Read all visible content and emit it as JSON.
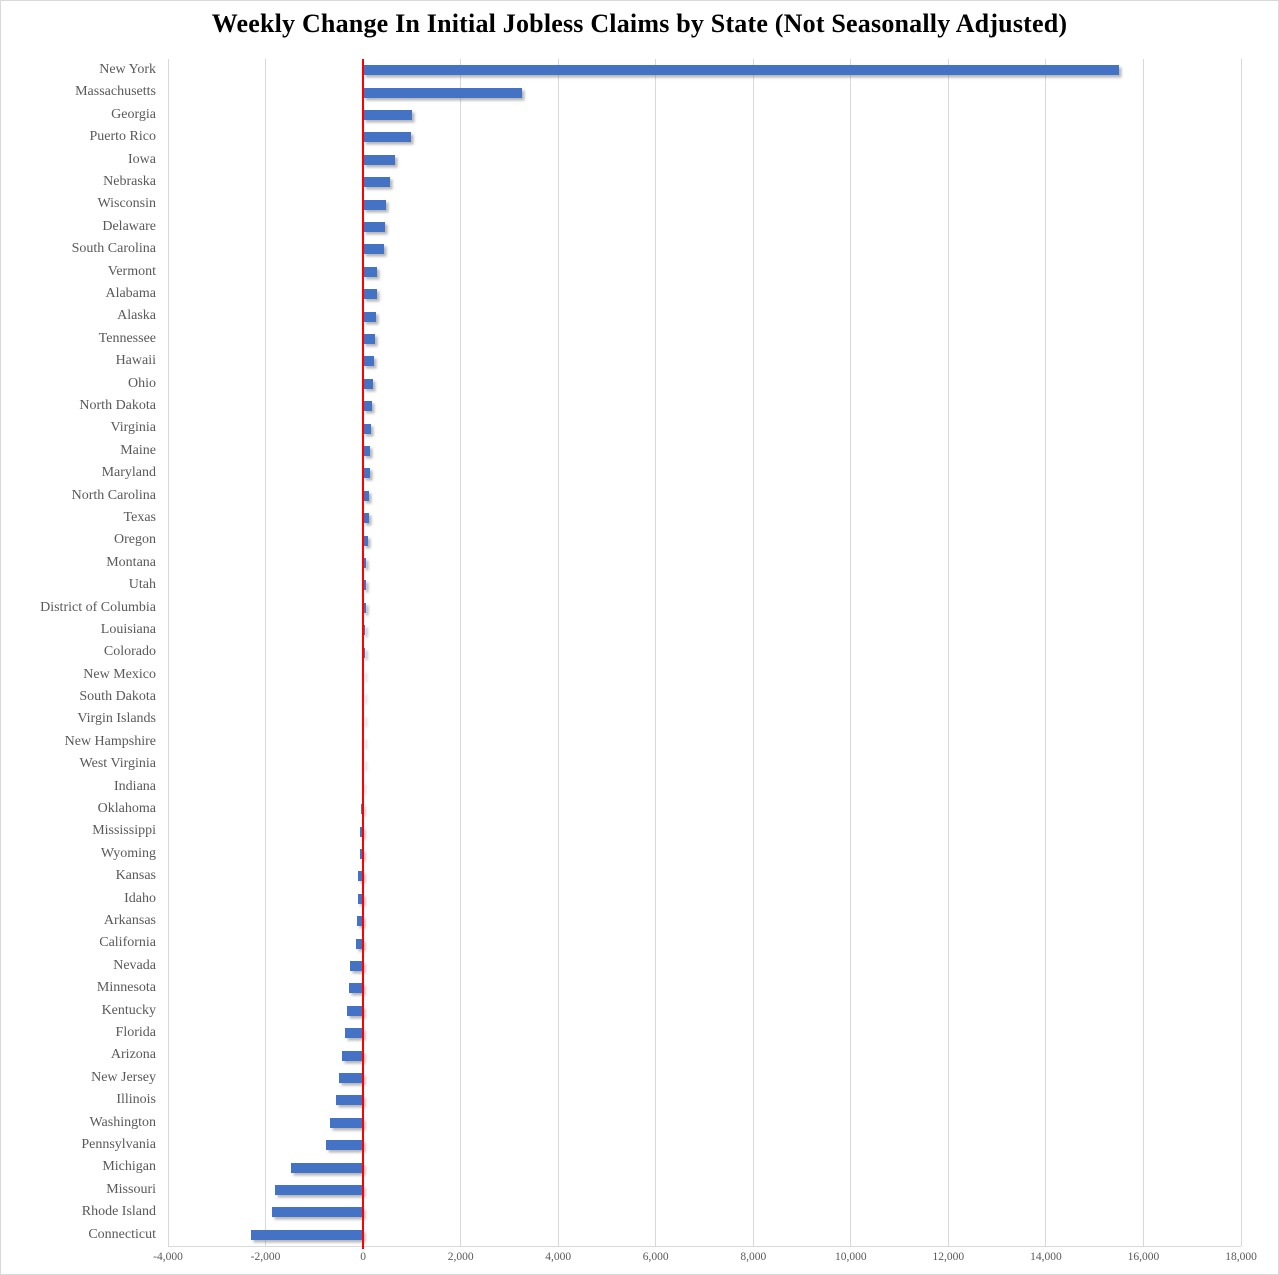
{
  "chart_data": {
    "type": "bar",
    "orientation": "horizontal",
    "title": "Weekly Change In Initial Jobless Claims by State (Not Seasonally Adjusted)",
    "categories": [
      "New York",
      "Massachusetts",
      "Georgia",
      "Puerto Rico",
      "Iowa",
      "Nebraska",
      "Wisconsin",
      "Delaware",
      "South Carolina",
      "Vermont",
      "Alabama",
      "Alaska",
      "Tennessee",
      "Hawaii",
      "Ohio",
      "North Dakota",
      "Virginia",
      "Maine",
      "Maryland",
      "North Carolina",
      "Texas",
      "Oregon",
      "Montana",
      "Utah",
      "District of Columbia",
      "Louisiana",
      "Colorado",
      "New Mexico",
      "South Dakota",
      "Virgin Islands",
      "New Hampshire",
      "West Virginia",
      "Indiana",
      "Oklahoma",
      "Mississippi",
      "Wyoming",
      "Kansas",
      "Idaho",
      "Arkansas",
      "California",
      "Nevada",
      "Minnesota",
      "Kentucky",
      "Florida",
      "Arizona",
      "New Jersey",
      "Illinois",
      "Washington",
      "Pennsylvania",
      "Michigan",
      "Missouri",
      "Rhode Island",
      "Connecticut"
    ],
    "values": [
      15500,
      3250,
      1000,
      990,
      650,
      560,
      465,
      455,
      425,
      290,
      285,
      270,
      250,
      220,
      210,
      185,
      170,
      150,
      140,
      125,
      115,
      100,
      60,
      55,
      50,
      45,
      40,
      -2,
      -4,
      -6,
      -8,
      -10,
      -15,
      -45,
      -55,
      -70,
      -105,
      -110,
      -125,
      -145,
      -270,
      -280,
      -330,
      -380,
      -430,
      -490,
      -550,
      -670,
      -760,
      -1470,
      -1810,
      -1860,
      -2300
    ],
    "xlim": [
      -4000,
      18000
    ],
    "x_tick_interval": 2000,
    "x_tick_labels": [
      "-4,000",
      "-2,000",
      "0",
      "2,000",
      "4,000",
      "6,000",
      "8,000",
      "10,000",
      "12,000",
      "14,000",
      "16,000",
      "18,000"
    ],
    "grid": "vertical",
    "legend": "none",
    "colors": {
      "bar": "#4472C4",
      "zero_line": "#FF0000",
      "gridline": "#D9D9D9",
      "axis_label": "#595959",
      "state_label": "#595959",
      "title": "#000000"
    }
  }
}
